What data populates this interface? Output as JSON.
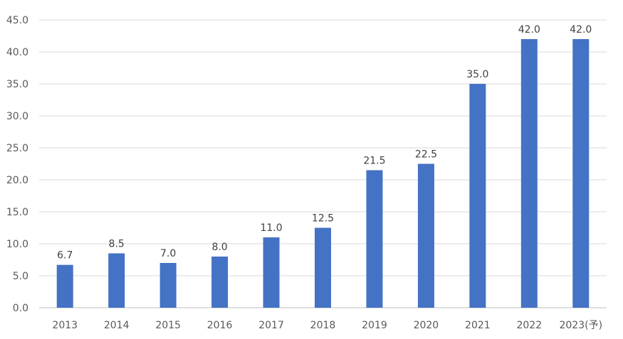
{
  "chart_data": {
    "type": "bar",
    "categories": [
      "2013",
      "2014",
      "2015",
      "2016",
      "2017",
      "2018",
      "2019",
      "2020",
      "2021",
      "2022",
      "2023(予)"
    ],
    "series": [
      {
        "values": [
          6.7,
          8.5,
          7.0,
          8.0,
          11.0,
          12.5,
          21.5,
          22.5,
          35.0,
          42.0,
          42.0
        ],
        "data_labels": [
          "6.7",
          "8.5",
          "7.0",
          "8.0",
          "11.0",
          "12.5",
          "21.5",
          "22.5",
          "35.0",
          "42.0",
          "42.0"
        ]
      }
    ],
    "y_ticks": [
      "0.0",
      "5.0",
      "10.0",
      "15.0",
      "20.0",
      "25.0",
      "30.0",
      "35.0",
      "40.0",
      "45.0"
    ],
    "ylim": [
      0,
      45
    ],
    "y_tick_step": 5,
    "title": "",
    "xlabel": "",
    "ylabel": "",
    "grid": "horizontal",
    "legend": "none",
    "colors": {
      "bar": "#4472C4",
      "grid": "#D9D9D9",
      "axis": "#BFBFBF"
    }
  }
}
